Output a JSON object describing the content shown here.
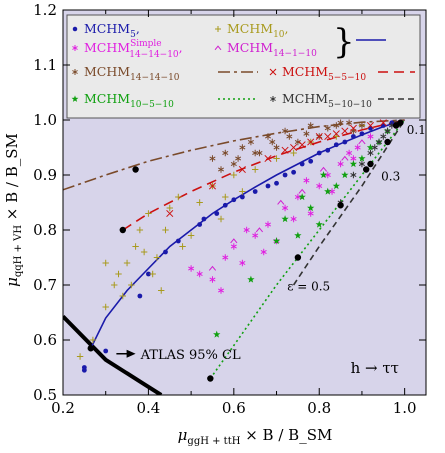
{
  "chart_data": {
    "type": "scatter",
    "xlabel": "μ_ggH + ttH × B / B_SM",
    "ylabel": "μ_qqH + VH × B / B_SM",
    "xlim": [
      0.2,
      1.05
    ],
    "ylim": [
      0.5,
      1.2
    ],
    "xticks": [
      0.2,
      0.4,
      0.6,
      0.8,
      1.0
    ],
    "xtick_labels": [
      "0.2",
      "0.4",
      "0.6",
      "0.8",
      "1.0"
    ],
    "yticks": [
      0.5,
      0.6,
      0.7,
      0.8,
      0.9,
      1.0,
      1.1,
      1.2
    ],
    "ytick_labels": [
      "0.5",
      "0.6",
      "0.7",
      "0.8",
      "0.9",
      "1.0",
      "1.1",
      "1.2"
    ],
    "grid": false,
    "legend_position": "top",
    "background_color": "#d7d4ea",
    "legend_background": "#eaeaea",
    "annotations": {
      "atlas": "ATLAS 95% CL",
      "channel": "h → ττ",
      "eps_05": "ε = 0.5",
      "eps_03": "0.3",
      "eps_01": "0.1"
    },
    "legend": [
      {
        "base": "MCHM",
        "sub": "5",
        "sup": "",
        "tail": ",",
        "color": "#1a1aaa",
        "marker": "dot"
      },
      {
        "base": "MCHM",
        "sub": "10",
        "sup": "",
        "tail": ",",
        "color": "#a89a1e",
        "marker": "plus"
      },
      {
        "base": "MCHM",
        "sub": "14−14−10",
        "sup": "Simple",
        "tail": ",",
        "color": "#e020e0",
        "marker": "asterisk"
      },
      {
        "base": "MCHM",
        "sub": "14−1−10",
        "sup": "",
        "tail": "",
        "color": "#d020d0",
        "marker": "caret"
      },
      {
        "base": "MCHM",
        "sub": "14−14−10",
        "sup": "",
        "tail": "",
        "color": "#7a4a2a",
        "marker": "asterisk",
        "line": "dashdot"
      },
      {
        "base": "MCHM",
        "sub": "5−5−10",
        "sup": "",
        "tail": "",
        "color": "#cc1010",
        "marker": "cross",
        "line": "dashed"
      },
      {
        "base": "MCHM",
        "sub": "10−5−10",
        "sup": "",
        "tail": "",
        "color": "#10a010",
        "marker": "star",
        "line": "dotted"
      },
      {
        "base": "MCHM",
        "sub": "5−10−10",
        "sup": "",
        "tail": "",
        "color": "#333333",
        "marker": "asterisk",
        "line": "dashed-short"
      }
    ],
    "series": [
      {
        "name": "MCHM5",
        "color": "#1a1aaa",
        "marker": "dot",
        "points": [
          [
            0.25,
            0.55
          ],
          [
            0.25,
            0.545
          ],
          [
            0.3,
            0.58
          ],
          [
            0.38,
            0.68
          ],
          [
            0.4,
            0.72
          ],
          [
            0.44,
            0.76
          ],
          [
            0.47,
            0.78
          ],
          [
            0.52,
            0.81
          ],
          [
            0.56,
            0.83
          ],
          [
            0.62,
            0.86
          ],
          [
            0.68,
            0.88
          ],
          [
            0.72,
            0.9
          ],
          [
            0.76,
            0.92
          ],
          [
            0.8,
            0.94
          ],
          [
            0.84,
            0.955
          ],
          [
            0.88,
            0.97
          ],
          [
            0.92,
            0.985
          ],
          [
            0.95,
            0.99
          ],
          [
            0.97,
            0.995
          ],
          [
            0.65,
            0.87
          ],
          [
            0.7,
            0.885
          ],
          [
            0.74,
            0.905
          ],
          [
            0.78,
            0.925
          ],
          [
            0.82,
            0.945
          ],
          [
            0.86,
            0.96
          ],
          [
            0.9,
            0.975
          ],
          [
            0.53,
            0.82
          ],
          [
            0.58,
            0.845
          ],
          [
            0.6,
            0.855
          ]
        ]
      },
      {
        "name": "MCHM10",
        "color": "#a89a1e",
        "marker": "plus",
        "points": [
          [
            0.24,
            0.57
          ],
          [
            0.27,
            0.6
          ],
          [
            0.3,
            0.66
          ],
          [
            0.32,
            0.7
          ],
          [
            0.33,
            0.72
          ],
          [
            0.35,
            0.74
          ],
          [
            0.37,
            0.77
          ],
          [
            0.38,
            0.8
          ],
          [
            0.4,
            0.83
          ],
          [
            0.42,
            0.75
          ],
          [
            0.44,
            0.8
          ],
          [
            0.45,
            0.84
          ],
          [
            0.47,
            0.86
          ],
          [
            0.5,
            0.79
          ],
          [
            0.52,
            0.85
          ],
          [
            0.55,
            0.88
          ],
          [
            0.57,
            0.82
          ],
          [
            0.6,
            0.9
          ],
          [
            0.62,
            0.87
          ],
          [
            0.65,
            0.91
          ],
          [
            0.7,
            0.93
          ],
          [
            0.74,
            0.94
          ],
          [
            0.78,
            0.96
          ],
          [
            0.84,
            0.97
          ],
          [
            0.9,
            0.99
          ],
          [
            0.36,
            0.7
          ],
          [
            0.41,
            0.72
          ],
          [
            0.48,
            0.77
          ],
          [
            0.34,
            0.68
          ],
          [
            0.39,
            0.76
          ],
          [
            0.58,
            0.86
          ],
          [
            0.3,
            0.74
          ],
          [
            0.43,
            0.69
          ]
        ]
      },
      {
        "name": "MCHM14-14-10 Simple",
        "color": "#e020e0",
        "marker": "asterisk",
        "points": [
          [
            0.5,
            0.73
          ],
          [
            0.52,
            0.72
          ],
          [
            0.55,
            0.71
          ],
          [
            0.58,
            0.75
          ],
          [
            0.6,
            0.77
          ],
          [
            0.62,
            0.74
          ],
          [
            0.65,
            0.79
          ],
          [
            0.68,
            0.81
          ],
          [
            0.7,
            0.78
          ],
          [
            0.72,
            0.84
          ],
          [
            0.75,
            0.86
          ],
          [
            0.78,
            0.83
          ],
          [
            0.8,
            0.88
          ],
          [
            0.82,
            0.9
          ],
          [
            0.85,
            0.92
          ],
          [
            0.87,
            0.94
          ],
          [
            0.89,
            0.95
          ],
          [
            0.92,
            0.97
          ],
          [
            0.57,
            0.69
          ],
          [
            0.63,
            0.8
          ],
          [
            0.67,
            0.76
          ],
          [
            0.74,
            0.82
          ],
          [
            0.77,
            0.89
          ],
          [
            0.83,
            0.87
          ],
          [
            0.88,
            0.93
          ]
        ]
      },
      {
        "name": "MCHM14-1-10",
        "color": "#d020d0",
        "marker": "caret",
        "points": [
          [
            0.55,
            0.73
          ],
          [
            0.6,
            0.78
          ],
          [
            0.66,
            0.8
          ],
          [
            0.71,
            0.85
          ],
          [
            0.76,
            0.87
          ],
          [
            0.81,
            0.91
          ],
          [
            0.86,
            0.93
          ],
          [
            0.9,
            0.96
          ]
        ]
      },
      {
        "name": "MCHM14-14-10",
        "color": "#7a4a2a",
        "marker": "asterisk",
        "points": [
          [
            0.55,
            0.93
          ],
          [
            0.58,
            0.94
          ],
          [
            0.6,
            0.92
          ],
          [
            0.62,
            0.95
          ],
          [
            0.64,
            0.96
          ],
          [
            0.66,
            0.94
          ],
          [
            0.68,
            0.97
          ],
          [
            0.7,
            0.95
          ],
          [
            0.72,
            0.98
          ],
          [
            0.75,
            0.96
          ],
          [
            0.78,
            0.99
          ],
          [
            0.8,
            0.97
          ],
          [
            0.82,
            0.985
          ],
          [
            0.85,
            0.995
          ],
          [
            0.88,
            0.98
          ],
          [
            0.9,
            0.99
          ],
          [
            0.57,
            0.91
          ],
          [
            0.61,
            0.93
          ],
          [
            0.65,
            0.94
          ],
          [
            0.69,
            0.96
          ],
          [
            0.73,
            0.97
          ],
          [
            0.77,
            0.975
          ],
          [
            0.84,
            0.99
          ],
          [
            0.87,
            0.995
          ]
        ]
      },
      {
        "name": "MCHM5-5-10",
        "color": "#cc1010",
        "marker": "cross",
        "points": [
          [
            0.45,
            0.83
          ],
          [
            0.55,
            0.88
          ],
          [
            0.62,
            0.91
          ],
          [
            0.68,
            0.93
          ],
          [
            0.72,
            0.945
          ],
          [
            0.76,
            0.955
          ],
          [
            0.8,
            0.97
          ],
          [
            0.84,
            0.975
          ],
          [
            0.88,
            0.985
          ],
          [
            0.92,
            0.99
          ],
          [
            0.95,
            0.995
          ],
          [
            0.74,
            0.95
          ],
          [
            0.78,
            0.96
          ],
          [
            0.82,
            0.97
          ],
          [
            0.86,
            0.98
          ]
        ]
      },
      {
        "name": "MCHM10-5-10",
        "color": "#10a010",
        "marker": "star",
        "points": [
          [
            0.56,
            0.61
          ],
          [
            0.64,
            0.71
          ],
          [
            0.7,
            0.78
          ],
          [
            0.75,
            0.79
          ],
          [
            0.78,
            0.84
          ],
          [
            0.8,
            0.81
          ],
          [
            0.82,
            0.87
          ],
          [
            0.84,
            0.88
          ],
          [
            0.86,
            0.9
          ],
          [
            0.88,
            0.92
          ],
          [
            0.9,
            0.93
          ],
          [
            0.92,
            0.95
          ],
          [
            0.94,
            0.96
          ],
          [
            0.96,
            0.98
          ],
          [
            0.72,
            0.82
          ],
          [
            0.76,
            0.86
          ],
          [
            0.81,
            0.9
          ]
        ]
      },
      {
        "name": "MCHM5-10-10",
        "color": "#333333",
        "marker": "asterisk",
        "points": [
          [
            0.85,
            0.85
          ],
          [
            0.88,
            0.9
          ],
          [
            0.9,
            0.92
          ],
          [
            0.92,
            0.94
          ],
          [
            0.94,
            0.96
          ],
          [
            0.96,
            0.98
          ],
          [
            0.97,
            0.99
          ],
          [
            0.98,
            0.995
          ],
          [
            0.93,
            0.95
          ],
          [
            0.95,
            0.97
          ]
        ]
      }
    ],
    "curves": [
      {
        "name": "MCHM5",
        "color": "#1a1aaa",
        "style": "solid",
        "points": [
          [
            0.265,
            0.585
          ],
          [
            0.3,
            0.64
          ],
          [
            0.35,
            0.69
          ],
          [
            0.4,
            0.73
          ],
          [
            0.45,
            0.77
          ],
          [
            0.5,
            0.8
          ],
          [
            0.55,
            0.83
          ],
          [
            0.6,
            0.855
          ],
          [
            0.65,
            0.878
          ],
          [
            0.7,
            0.9
          ],
          [
            0.75,
            0.92
          ],
          [
            0.8,
            0.94
          ],
          [
            0.85,
            0.957
          ],
          [
            0.9,
            0.973
          ],
          [
            0.95,
            0.988
          ],
          [
            1.0,
            1.0
          ]
        ]
      },
      {
        "name": "MCHM14-14-10",
        "color": "#7a4a2a",
        "style": "dashdot",
        "points": [
          [
            0.2,
            0.873
          ],
          [
            0.3,
            0.9
          ],
          [
            0.4,
            0.925
          ],
          [
            0.5,
            0.945
          ],
          [
            0.6,
            0.962
          ],
          [
            0.7,
            0.976
          ],
          [
            0.8,
            0.988
          ],
          [
            0.9,
            0.996
          ],
          [
            1.0,
            1.0
          ]
        ]
      },
      {
        "name": "MCHM5-5-10",
        "color": "#cc1010",
        "style": "dashed",
        "points": [
          [
            0.34,
            0.8
          ],
          [
            0.4,
            0.83
          ],
          [
            0.5,
            0.87
          ],
          [
            0.6,
            0.905
          ],
          [
            0.7,
            0.935
          ],
          [
            0.8,
            0.96
          ],
          [
            0.9,
            0.982
          ],
          [
            1.0,
            1.0
          ]
        ]
      },
      {
        "name": "MCHM10-5-10",
        "color": "#10a010",
        "style": "dotted",
        "points": [
          [
            0.545,
            0.53
          ],
          [
            0.6,
            0.59
          ],
          [
            0.7,
            0.7
          ],
          [
            0.8,
            0.8
          ],
          [
            0.9,
            0.9
          ],
          [
            1.0,
            1.0
          ]
        ]
      },
      {
        "name": "MCHM5-10-10",
        "color": "#333333",
        "style": "dashed-short",
        "points": [
          [
            0.74,
            0.7
          ],
          [
            0.8,
            0.77
          ],
          [
            0.9,
            0.88
          ],
          [
            1.0,
            1.0
          ]
        ]
      }
    ],
    "benchmarks": [
      [
        0.265,
        0.585
      ],
      [
        0.34,
        0.8
      ],
      [
        0.37,
        0.91
      ],
      [
        0.545,
        0.53
      ],
      [
        0.75,
        0.75
      ],
      [
        0.85,
        0.845
      ],
      [
        0.91,
        0.91
      ],
      [
        0.92,
        0.92
      ],
      [
        0.96,
        0.96
      ],
      [
        0.98,
        0.99
      ],
      [
        0.99,
        0.995
      ]
    ],
    "atlas_boundary": [
      [
        0.2,
        0.643
      ],
      [
        0.3,
        0.564
      ],
      [
        0.43,
        0.5
      ]
    ],
    "atlas_arrow": [
      [
        0.325,
        0.575
      ],
      [
        0.37,
        0.575
      ]
    ]
  }
}
